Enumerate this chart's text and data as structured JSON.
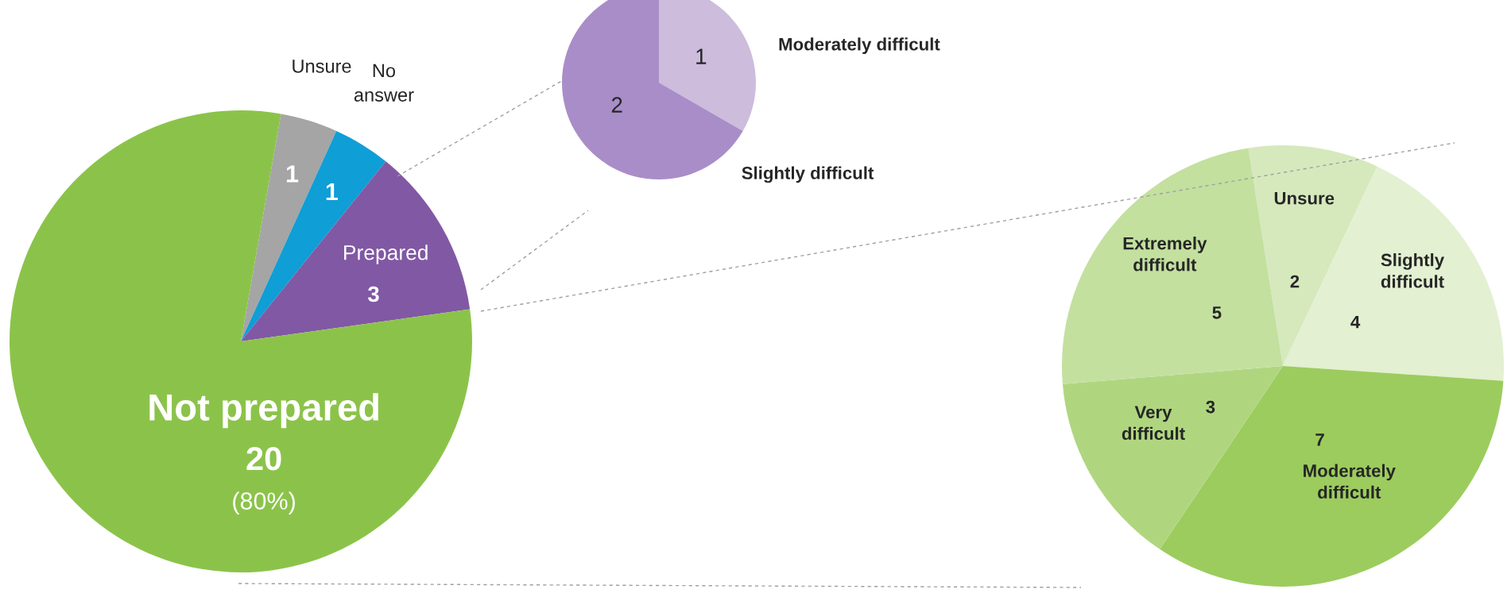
{
  "chart_data": [
    {
      "type": "pie",
      "categories": [
        "Unsure",
        "No answer",
        "Prepared",
        "Not prepared"
      ],
      "values": [
        1,
        1,
        3,
        20
      ],
      "colors": [
        "#a5a5a5",
        "#0f9ed5",
        "#8158a4",
        "#8bc34a"
      ],
      "data_labels": true,
      "annotations": [
        "(80%)"
      ]
    },
    {
      "type": "pie",
      "categories": [
        "Moderately difficult",
        "Slightly difficult"
      ],
      "values": [
        1,
        2
      ],
      "colors": [
        "#cdbcdc",
        "#a98dc8"
      ],
      "data_labels": true
    },
    {
      "type": "pie",
      "categories": [
        "Unsure",
        "Slightly difficult",
        "Moderately difficult",
        "Very difficult",
        "Extremely difficult"
      ],
      "values": [
        2,
        4,
        7,
        3,
        5
      ],
      "colors": [
        "#d6e9bd",
        "#e3f0d1",
        "#9ccc5e",
        "#afd67f",
        "#c3e09f"
      ],
      "data_labels": true
    }
  ]
}
